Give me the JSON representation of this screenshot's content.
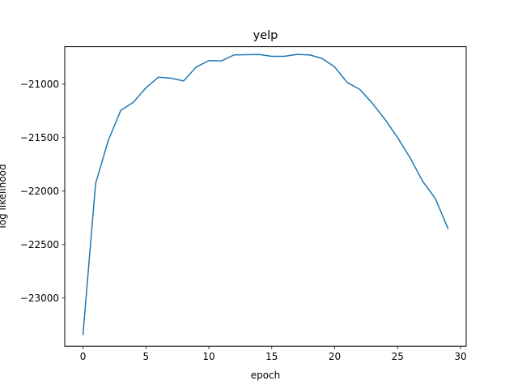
{
  "chart_data": {
    "type": "line",
    "title": "yelp",
    "xlabel": "epoch",
    "ylabel": "log likelihood",
    "xlim": [
      -1.45,
      30.45
    ],
    "ylim": [
      -23450,
      -20650
    ],
    "xticks": [
      0,
      5,
      10,
      15,
      20,
      25,
      30
    ],
    "yticks": [
      -23000,
      -22500,
      -22000,
      -21500,
      -21000
    ],
    "xtick_labels": [
      "0",
      "5",
      "10",
      "15",
      "20",
      "25",
      "30"
    ],
    "ytick_labels": [
      "−23000",
      "−22500",
      "−22000",
      "−21500",
      "−21000"
    ],
    "grid": false,
    "series": [
      {
        "color": "#1f77b4",
        "x": [
          0,
          1,
          2,
          3,
          4,
          5,
          6,
          7,
          8,
          9,
          10,
          11,
          12,
          13,
          14,
          15,
          16,
          17,
          18,
          19,
          20,
          21,
          22,
          23,
          24,
          25,
          26,
          27,
          28,
          29
        ],
        "values": [
          -23340,
          -21930,
          -21530,
          -21245,
          -21170,
          -21035,
          -20935,
          -20945,
          -20970,
          -20840,
          -20780,
          -20783,
          -20727,
          -20725,
          -20723,
          -20740,
          -20740,
          -20722,
          -20727,
          -20760,
          -20840,
          -20985,
          -21050,
          -21180,
          -21330,
          -21500,
          -21690,
          -21910,
          -22070,
          -22350
        ]
      }
    ]
  }
}
